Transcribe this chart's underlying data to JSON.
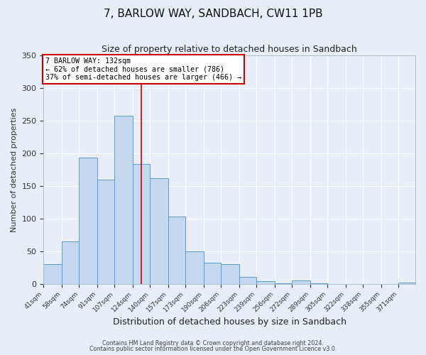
{
  "title": "7, BARLOW WAY, SANDBACH, CW11 1PB",
  "subtitle": "Size of property relative to detached houses in Sandbach",
  "xlabel": "Distribution of detached houses by size in Sandbach",
  "ylabel": "Number of detached properties",
  "bar_color": "#c5d8f0",
  "bar_edge_color": "#5b9bd5",
  "bg_color": "#e8eef7",
  "plot_bg_color": "#e8eef7",
  "grid_color": "#ffffff",
  "categories": [
    "41sqm",
    "58sqm",
    "74sqm",
    "91sqm",
    "107sqm",
    "124sqm",
    "140sqm",
    "157sqm",
    "173sqm",
    "190sqm",
    "206sqm",
    "223sqm",
    "239sqm",
    "256sqm",
    "272sqm",
    "289sqm",
    "305sqm",
    "322sqm",
    "338sqm",
    "355sqm",
    "371sqm"
  ],
  "values": [
    30,
    65,
    193,
    160,
    258,
    184,
    162,
    103,
    50,
    32,
    30,
    11,
    4,
    1,
    5,
    1,
    0,
    0,
    0,
    0,
    2
  ],
  "ylim": [
    0,
    350
  ],
  "yticks": [
    0,
    50,
    100,
    150,
    200,
    250,
    300,
    350
  ],
  "property_line_x": 132,
  "bin_edges": [
    41,
    58,
    74,
    91,
    107,
    124,
    140,
    157,
    173,
    190,
    206,
    223,
    239,
    256,
    272,
    289,
    305,
    322,
    338,
    355,
    371,
    387
  ],
  "annotation_title": "7 BARLOW WAY: 132sqm",
  "annotation_line1": "← 62% of detached houses are smaller (786)",
  "annotation_line2": "37% of semi-detached houses are larger (466) →",
  "annotation_box_color": "#ffffff",
  "annotation_box_edge": "#cc0000",
  "red_line_color": "#cc0000",
  "footnote1": "Contains HM Land Registry data © Crown copyright and database right 2024.",
  "footnote2": "Contains public sector information licensed under the Open Government Licence v3.0."
}
